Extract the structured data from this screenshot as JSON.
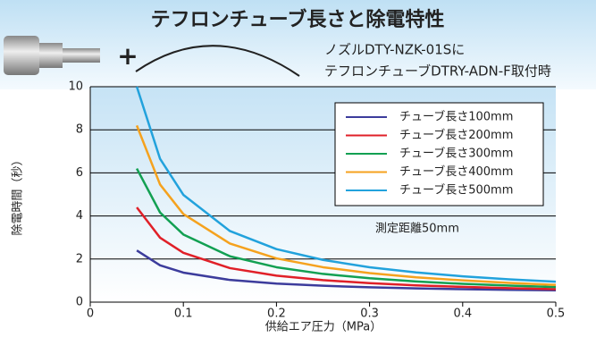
{
  "chart_data": {
    "type": "line",
    "title": "テフロンチューブ長さと除電特性",
    "annotations": [
      "+",
      "ノズルDTY-NZK-01Sに",
      "テフロンチューブDTRY-ADN-F取付時",
      "測定距離50mm"
    ],
    "x_label": "供給エア圧力（MPa）",
    "y_label": "除電時間（秒）",
    "x": [
      0.05,
      0.075,
      0.1,
      0.15,
      0.2,
      0.25,
      0.3,
      0.35,
      0.4,
      0.45,
      0.5
    ],
    "series": [
      {
        "name": "チューブ長さ100mm",
        "color": "#3c3c9c",
        "values": [
          2.4,
          1.71,
          1.37,
          1.03,
          0.86,
          0.76,
          0.69,
          0.64,
          0.6,
          0.57,
          0.55
        ]
      },
      {
        "name": "チューブ長さ200mm",
        "color": "#e02028",
        "values": [
          4.4,
          2.99,
          2.29,
          1.58,
          1.23,
          1.02,
          0.88,
          0.78,
          0.71,
          0.65,
          0.6
        ]
      },
      {
        "name": "チューブ長さ300mm",
        "color": "#12a052",
        "values": [
          6.2,
          4.16,
          3.14,
          2.13,
          1.62,
          1.31,
          1.11,
          0.96,
          0.85,
          0.77,
          0.7
        ]
      },
      {
        "name": "チューブ長さ400mm",
        "color": "#f5a21e",
        "values": [
          8.2,
          5.46,
          4.09,
          2.72,
          2.03,
          1.62,
          1.35,
          1.15,
          1.01,
          0.89,
          0.8
        ]
      },
      {
        "name": "チューブ長さ500mm",
        "color": "#22a2dc",
        "values": [
          10,
          6.65,
          4.98,
          3.3,
          2.46,
          1.96,
          1.62,
          1.38,
          1.2,
          1.06,
          0.95
        ]
      }
    ],
    "xlim": [
      0,
      0.5
    ],
    "xticks": [
      0,
      0.1,
      0.2,
      0.3,
      0.4,
      0.5
    ],
    "ylim": [
      0,
      10
    ],
    "yticks": [
      0,
      2,
      4,
      6,
      8,
      10
    ],
    "grid": true,
    "legend": "upper right"
  }
}
